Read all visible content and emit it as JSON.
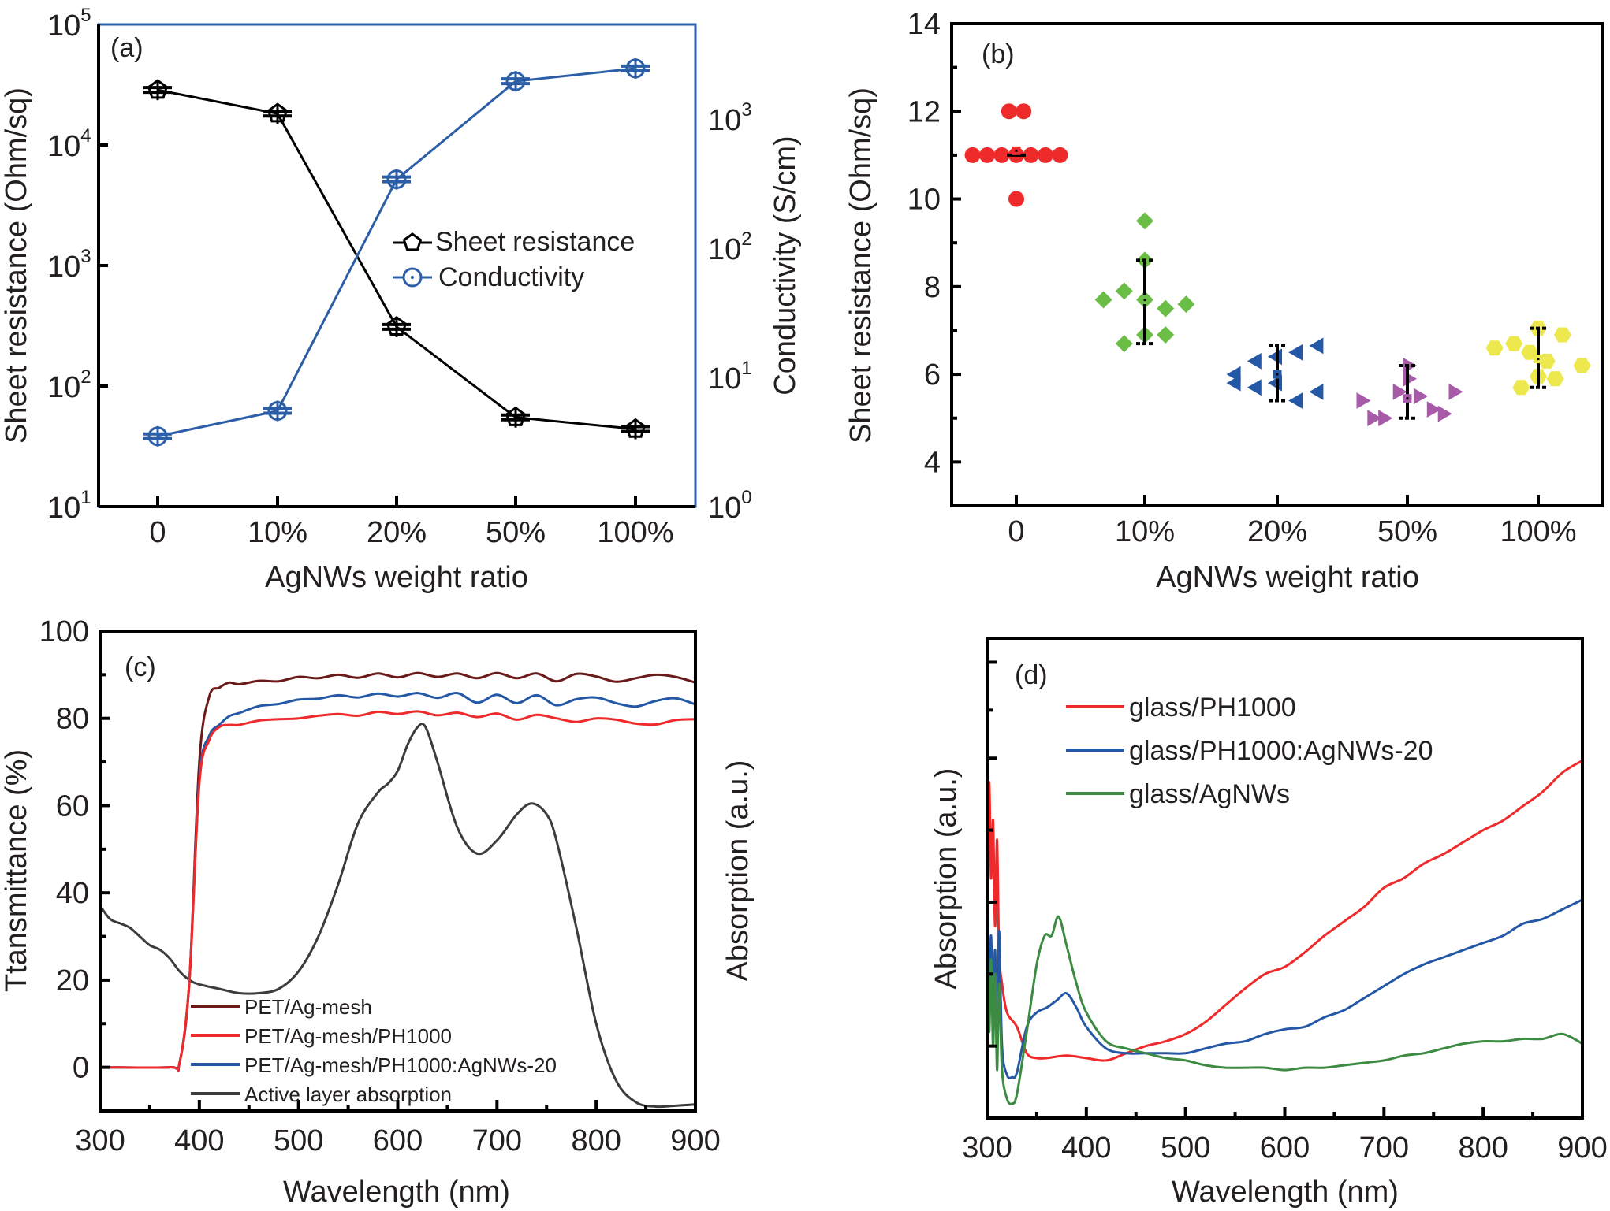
{
  "figure": {
    "panels": [
      "(a)",
      "(b)",
      "(c)",
      "(d)"
    ]
  },
  "chart_data": [
    {
      "id": "a",
      "panel_label": "(a)",
      "type": "line",
      "scale": "log",
      "xlabel": "AgNWs weight ratio",
      "ylabel": "Sheet resistance (Ohm/sq)",
      "y2label": "Conductivity (S/cm)",
      "categories": [
        "0",
        "10%",
        "20%",
        "50%",
        "100%"
      ],
      "ylim_log10": [
        1,
        5
      ],
      "y2lim_log10": [
        0,
        3.73
      ],
      "yticks": [
        {
          "base": "10",
          "exp": "1",
          "v": 1
        },
        {
          "base": "10",
          "exp": "2",
          "v": 2
        },
        {
          "base": "10",
          "exp": "3",
          "v": 3
        },
        {
          "base": "10",
          "exp": "4",
          "v": 4
        },
        {
          "base": "10",
          "exp": "5",
          "v": 5
        }
      ],
      "y2ticks": [
        {
          "base": "10",
          "exp": "0",
          "v": 0
        },
        {
          "base": "10",
          "exp": "1",
          "v": 1
        },
        {
          "base": "10",
          "exp": "2",
          "v": 2
        },
        {
          "base": "10",
          "exp": "3",
          "v": 3
        }
      ],
      "series": [
        {
          "name": "Sheet resistance",
          "axis": "left",
          "marker": "pentagon",
          "color": "#000000",
          "values": [
            28600,
            18200,
            310,
            55,
            44
          ]
        },
        {
          "name": "Conductivity",
          "axis": "right",
          "marker": "circle-dot",
          "color": "#2b5ea7",
          "values": [
            3.5,
            5.5,
            340,
            1950,
            2450
          ]
        }
      ],
      "legend": [
        "Sheet resistance",
        "Conductivity"
      ],
      "legend_position": "center-right"
    },
    {
      "id": "b",
      "panel_label": "(b)",
      "type": "scatter",
      "xlabel": "AgNWs weight ratio",
      "ylabel": "Sheet resistance (Ohm/sq)",
      "categories": [
        "0",
        "10%",
        "20%",
        "50%",
        "100%"
      ],
      "ylim": [
        3,
        14
      ],
      "yticks": [
        4,
        6,
        8,
        10,
        12,
        14
      ],
      "groups": [
        {
          "category": "0",
          "marker": "circle",
          "color": "#ee2a2b",
          "points": [
            [
              -0.36,
              11
            ],
            [
              -0.24,
              11
            ],
            [
              -0.12,
              11
            ],
            [
              0,
              11
            ],
            [
              0.12,
              11
            ],
            [
              0.24,
              11
            ],
            [
              0.36,
              11
            ],
            [
              -0.06,
              12
            ],
            [
              0.06,
              12
            ],
            [
              0,
              10
            ]
          ],
          "mean": 11.1,
          "err_low": 11.0,
          "err_high": 11.0
        },
        {
          "category": "10%",
          "marker": "diamond",
          "color": "#6abd45",
          "points": [
            [
              -0.34,
              7.7
            ],
            [
              -0.17,
              7.9
            ],
            [
              0,
              9.5
            ],
            [
              0,
              8.6
            ],
            [
              0,
              7.7
            ],
            [
              0.17,
              7.5
            ],
            [
              0.34,
              7.6
            ],
            [
              -0.17,
              6.7
            ],
            [
              0,
              6.9
            ],
            [
              0.17,
              6.9
            ]
          ],
          "mean": 7.7,
          "err_low": 6.7,
          "err_high": 8.6
        },
        {
          "category": "20%",
          "marker": "triangle-left",
          "color": "#2458a6",
          "points": [
            [
              -0.34,
              6.0
            ],
            [
              -0.34,
              5.8
            ],
            [
              -0.17,
              6.3
            ],
            [
              -0.17,
              5.7
            ],
            [
              0,
              6.4
            ],
            [
              0,
              5.8
            ],
            [
              0.17,
              6.5
            ],
            [
              0.17,
              5.4
            ],
            [
              0.34,
              6.65
            ],
            [
              0.34,
              5.6
            ]
          ],
          "mean": 6.0,
          "err_low": 5.4,
          "err_high": 6.65
        },
        {
          "category": "50%",
          "marker": "triangle-right",
          "color": "#a65aa8",
          "points": [
            [
              -0.38,
              5.4
            ],
            [
              -0.29,
              5.0
            ],
            [
              -0.2,
              5.0
            ],
            [
              -0.08,
              5.6
            ],
            [
              0,
              6.2
            ],
            [
              0,
              5.9
            ],
            [
              0.09,
              5.5
            ],
            [
              0.2,
              5.2
            ],
            [
              0.29,
              5.1
            ],
            [
              0.38,
              5.6
            ]
          ],
          "mean": 5.45,
          "err_low": 5.0,
          "err_high": 6.2
        },
        {
          "category": "100%",
          "marker": "hexagon",
          "color": "#ede84e",
          "points": [
            [
              -0.36,
              6.6
            ],
            [
              -0.2,
              6.7
            ],
            [
              -0.07,
              6.5
            ],
            [
              0,
              7.05
            ],
            [
              0.07,
              6.3
            ],
            [
              0.2,
              6.9
            ],
            [
              0.36,
              6.2
            ],
            [
              0,
              5.95
            ],
            [
              -0.14,
              5.7
            ],
            [
              0.14,
              5.9
            ]
          ],
          "mean": 6.35,
          "err_low": 5.7,
          "err_high": 7.05
        }
      ]
    },
    {
      "id": "c",
      "panel_label": "(c)",
      "type": "line",
      "xlabel": "Wavelength (nm)",
      "ylabel": "Ttansmittance (%)",
      "y2label": "Absorption (a.u.)",
      "xlim": [
        300,
        900
      ],
      "ylim": [
        -10,
        100
      ],
      "xticks": [
        300,
        400,
        500,
        600,
        700,
        800,
        900
      ],
      "yticks": [
        0,
        20,
        40,
        60,
        80,
        100
      ],
      "series": [
        {
          "name": "PET/Ag-mesh",
          "color": "#6b1a1a",
          "x": [
            300,
            370,
            380,
            390,
            400,
            410,
            420,
            430,
            440,
            460,
            480,
            500,
            520,
            540,
            560,
            580,
            600,
            620,
            640,
            660,
            680,
            700,
            720,
            740,
            760,
            780,
            800,
            820,
            840,
            860,
            880,
            900
          ],
          "y": [
            0,
            0,
            1,
            20,
            70,
            85,
            87,
            88.2,
            87.8,
            88.6,
            88.5,
            89.5,
            89.2,
            90,
            89.3,
            90.3,
            89.4,
            90.4,
            89.5,
            90.3,
            89.2,
            90.4,
            89.2,
            90.3,
            88.5,
            90.2,
            89.6,
            88.4,
            89.2,
            90,
            89.5,
            88.2
          ]
        },
        {
          "name": "PET/Ag-mesh/PH1000",
          "color": "#ee2a2b",
          "x": [
            300,
            370,
            380,
            390,
            400,
            410,
            420,
            430,
            440,
            460,
            480,
            500,
            520,
            540,
            560,
            580,
            600,
            620,
            640,
            660,
            680,
            700,
            720,
            740,
            760,
            780,
            800,
            820,
            840,
            860,
            880,
            900
          ],
          "y": [
            0,
            0,
            1,
            20,
            65,
            75,
            78,
            78.5,
            78.5,
            79.5,
            79.8,
            80,
            80.6,
            81,
            80.6,
            81.5,
            81,
            81.6,
            80.7,
            81.3,
            80.3,
            81.1,
            79.7,
            80.8,
            80,
            79.2,
            80,
            79.7,
            78.8,
            78.6,
            79.6,
            79.8
          ]
        },
        {
          "name": "PET/Ag-mesh/PH1000:AgNWs-20",
          "color": "#2458a6",
          "x": [
            300,
            370,
            380,
            390,
            400,
            410,
            420,
            430,
            440,
            460,
            480,
            500,
            520,
            540,
            560,
            580,
            600,
            620,
            640,
            660,
            680,
            700,
            720,
            740,
            760,
            780,
            800,
            820,
            840,
            860,
            880,
            900
          ],
          "y": [
            0,
            0,
            1,
            20,
            66,
            76,
            78.5,
            80.5,
            81.2,
            82.8,
            83.3,
            84.3,
            84.5,
            85.3,
            84.8,
            85.7,
            85,
            85.8,
            84.7,
            85.8,
            83.6,
            85.4,
            83.5,
            85.3,
            83,
            84.4,
            84.8,
            83.5,
            82.7,
            84,
            84.6,
            83.2
          ]
        },
        {
          "name": "Active layer absorption",
          "color": "#3c3c3c",
          "x": [
            300,
            310,
            320,
            330,
            340,
            350,
            360,
            370,
            380,
            390,
            400,
            420,
            440,
            460,
            480,
            500,
            520,
            540,
            560,
            580,
            590,
            600,
            610,
            620,
            628,
            640,
            660,
            680,
            700,
            720,
            735,
            750,
            760,
            780,
            800,
            820,
            840,
            860,
            880,
            900
          ],
          "y": [
            37,
            34,
            33,
            32,
            30,
            28,
            27,
            25,
            22,
            20,
            19,
            18,
            17,
            17,
            18,
            22,
            30,
            42,
            56,
            63,
            65,
            68,
            74,
            78,
            78,
            70,
            55,
            49,
            52,
            58,
            60.5,
            58,
            52,
            32,
            10,
            -3,
            -8,
            -9,
            -8.8,
            -8.5
          ]
        }
      ],
      "legend": [
        "PET/Ag-mesh",
        "PET/Ag-mesh/PH1000",
        "PET/Ag-mesh/PH1000:AgNWs-20",
        "Active layer absorption"
      ],
      "legend_position": "bottom-left"
    },
    {
      "id": "d",
      "panel_label": "(d)",
      "type": "line",
      "xlabel": "Wavelength (nm)",
      "ylabel": "Absorption (a.u.)",
      "xlim": [
        300,
        900
      ],
      "ylim": [
        0,
        10
      ],
      "xticks": [
        300,
        400,
        500,
        600,
        700,
        800,
        900
      ],
      "series": [
        {
          "name": "glass/PH1000",
          "color": "#ee2a2b",
          "x": [
            300,
            302,
            304,
            306,
            308,
            310,
            312,
            315,
            320,
            330,
            340,
            350,
            360,
            380,
            400,
            420,
            440,
            460,
            480,
            500,
            520,
            540,
            560,
            580,
            600,
            620,
            640,
            660,
            680,
            700,
            720,
            740,
            760,
            780,
            800,
            820,
            840,
            860,
            880,
            900
          ],
          "y": [
            4.5,
            7.0,
            5.0,
            6.2,
            4.0,
            5.8,
            3.5,
            2.8,
            2.2,
            1.9,
            1.35,
            1.25,
            1.25,
            1.3,
            1.25,
            1.2,
            1.35,
            1.5,
            1.6,
            1.75,
            2.0,
            2.35,
            2.7,
            3.0,
            3.15,
            3.45,
            3.8,
            4.1,
            4.4,
            4.8,
            5.0,
            5.3,
            5.5,
            5.75,
            6.0,
            6.2,
            6.5,
            6.8,
            7.2,
            7.45
          ]
        },
        {
          "name": "glass/PH1000:AgNWs-20",
          "color": "#2458a6",
          "x": [
            300,
            302,
            304,
            306,
            308,
            310,
            312,
            315,
            320,
            325,
            330,
            340,
            350,
            360,
            370,
            380,
            390,
            400,
            420,
            440,
            460,
            480,
            500,
            520,
            540,
            560,
            580,
            600,
            620,
            640,
            660,
            680,
            700,
            720,
            740,
            760,
            780,
            800,
            820,
            840,
            860,
            880,
            900
          ],
          "y": [
            5.0,
            2.5,
            3.8,
            2.0,
            3.5,
            1.5,
            3.9,
            1.5,
            0.9,
            0.85,
            0.95,
            1.9,
            2.2,
            2.3,
            2.45,
            2.6,
            2.3,
            1.9,
            1.45,
            1.35,
            1.35,
            1.35,
            1.35,
            1.45,
            1.55,
            1.6,
            1.75,
            1.85,
            1.9,
            2.1,
            2.25,
            2.5,
            2.75,
            3.0,
            3.2,
            3.35,
            3.5,
            3.65,
            3.8,
            4.05,
            4.15,
            4.35,
            4.55
          ]
        },
        {
          "name": "glass/AgNWs",
          "color": "#3d8b43",
          "x": [
            300,
            302,
            304,
            306,
            308,
            310,
            312,
            315,
            320,
            325,
            330,
            340,
            350,
            358,
            365,
            372,
            380,
            390,
            400,
            420,
            440,
            460,
            480,
            500,
            520,
            540,
            560,
            580,
            600,
            620,
            640,
            660,
            680,
            700,
            720,
            740,
            760,
            780,
            800,
            820,
            840,
            860,
            880,
            900
          ],
          "y": [
            4.2,
            1.8,
            3.3,
            1.5,
            3.0,
            1.0,
            2.8,
            1.0,
            0.4,
            0.3,
            0.5,
            1.8,
            3.2,
            3.8,
            3.8,
            4.2,
            3.6,
            2.8,
            2.2,
            1.6,
            1.45,
            1.35,
            1.25,
            1.2,
            1.1,
            1.05,
            1.05,
            1.05,
            1.0,
            1.05,
            1.05,
            1.1,
            1.15,
            1.2,
            1.3,
            1.35,
            1.45,
            1.55,
            1.6,
            1.6,
            1.65,
            1.65,
            1.75,
            1.55
          ]
        }
      ],
      "legend": [
        "glass/PH1000",
        "glass/PH1000:AgNWs-20",
        "glass/AgNWs"
      ],
      "legend_position": "top-left"
    }
  ]
}
